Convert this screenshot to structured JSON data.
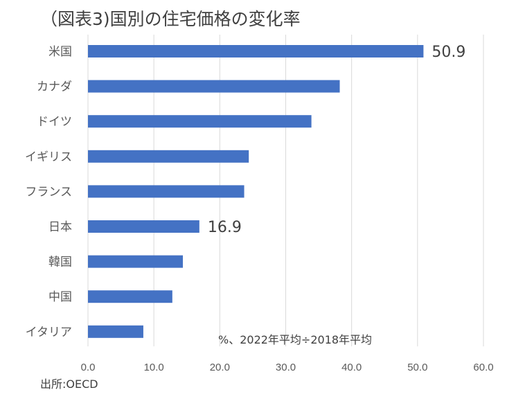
{
  "chart_data": {
    "type": "bar",
    "orientation": "horizontal",
    "title": "（図表3)国別の住宅価格の変化率",
    "categories": [
      "米国",
      "カナダ",
      "ドイツ",
      "イギリス",
      "フランス",
      "日本",
      "韓国",
      "中国",
      "イタリア"
    ],
    "values": [
      50.9,
      38.2,
      33.9,
      24.4,
      23.7,
      16.9,
      14.4,
      12.8,
      8.4
    ],
    "data_labels": {
      "0": "50.9",
      "5": "16.9"
    },
    "xlim": [
      0,
      60
    ],
    "xticks": [
      "0.0",
      "10.0",
      "20.0",
      "30.0",
      "40.0",
      "50.0",
      "60.0"
    ],
    "grid": true,
    "bar_color": "#4472c4",
    "unit_note": "%、2022年平均÷2018年平均",
    "source": "出所:OECD"
  }
}
